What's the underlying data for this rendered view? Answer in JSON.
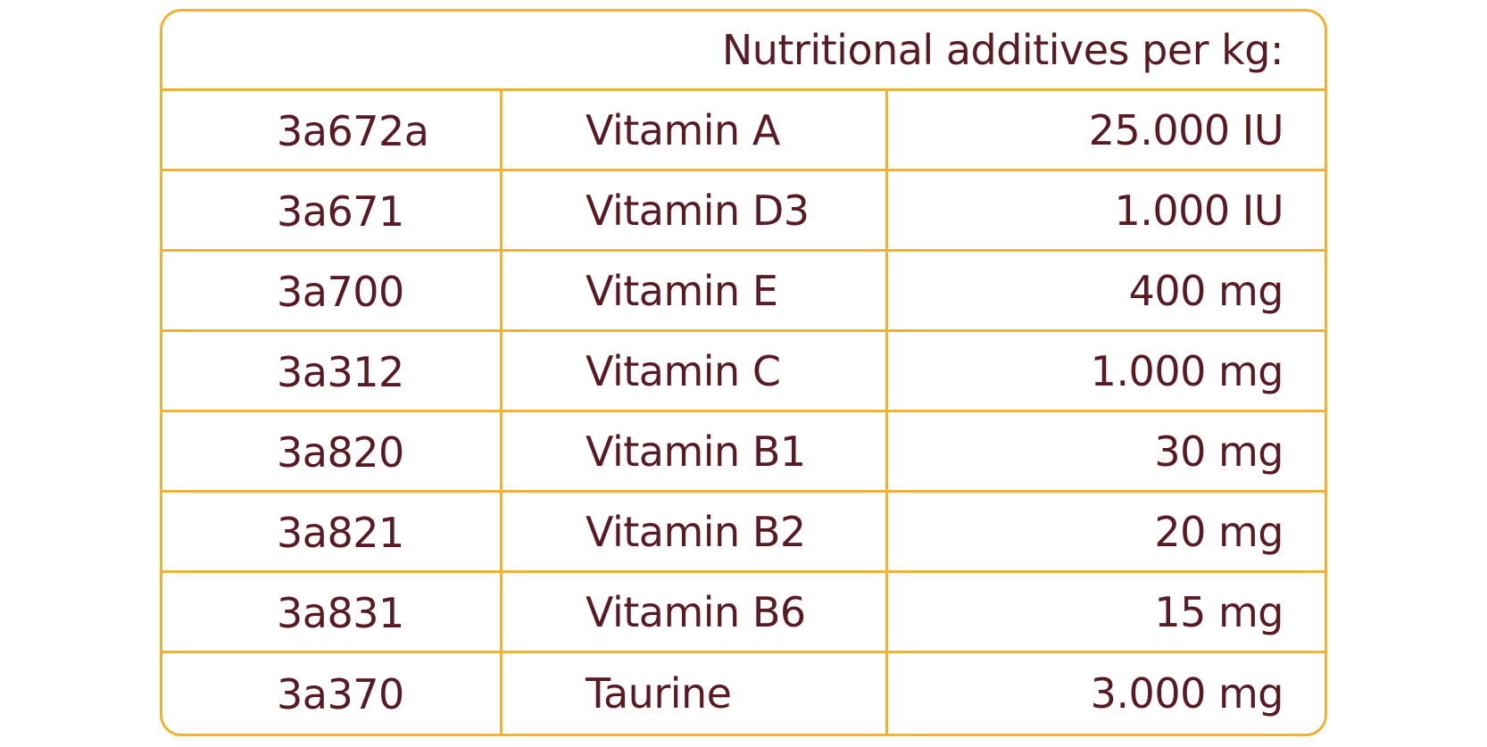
{
  "table": {
    "header": "Nutritional additives per kg:",
    "rows": [
      {
        "code": "3a672a",
        "name": "Vitamin A",
        "amount": "25.000 IU"
      },
      {
        "code": "3a671",
        "name": "Vitamin D3",
        "amount": "1.000 IU"
      },
      {
        "code": "3a700",
        "name": "Vitamin E",
        "amount": "400 mg"
      },
      {
        "code": "3a312",
        "name": "Vitamin C",
        "amount": "1.000 mg"
      },
      {
        "code": "3a820",
        "name": "Vitamin B1",
        "amount": "30 mg"
      },
      {
        "code": "3a821",
        "name": "Vitamin B2",
        "amount": "20 mg"
      },
      {
        "code": "3a831",
        "name": "Vitamin B6",
        "amount": "15 mg"
      },
      {
        "code": "3a370",
        "name": "Taurine",
        "amount": "3.000 mg"
      }
    ]
  },
  "colors": {
    "border": "#f0b233",
    "text": "#5a1a24"
  }
}
